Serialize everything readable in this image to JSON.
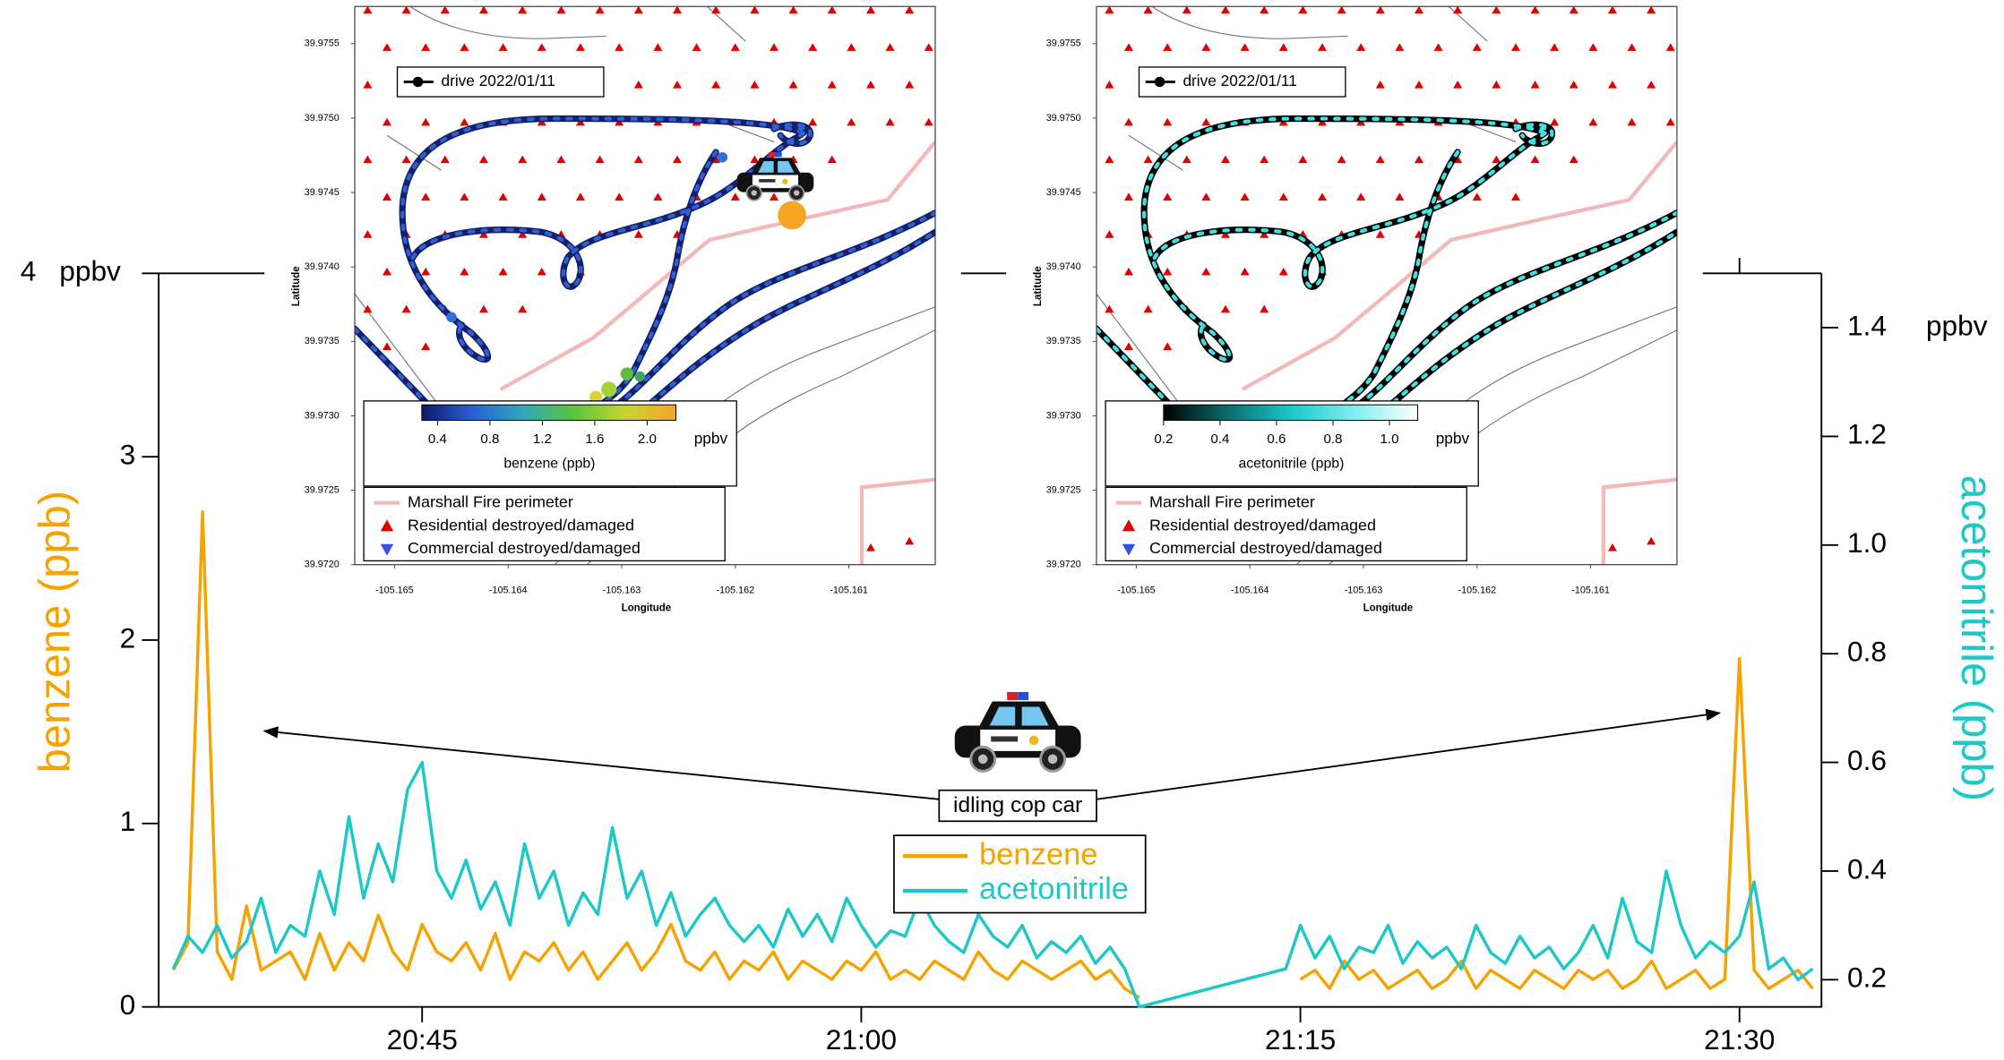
{
  "chart_data": [
    {
      "type": "line",
      "x": [
        1236.5,
        1237,
        1237.5,
        1238,
        1238.5,
        1239,
        1239.5,
        1240,
        1240.5,
        1241,
        1241.5,
        1242,
        1242.5,
        1243,
        1243.5,
        1244,
        1244.5,
        1245,
        1245.5,
        1246,
        1246.5,
        1247,
        1247.5,
        1248,
        1248.5,
        1249,
        1249.5,
        1250,
        1250.5,
        1251,
        1251.5,
        1252,
        1252.5,
        1253,
        1253.5,
        1254,
        1254.5,
        1255,
        1255.5,
        1256,
        1256.5,
        1257,
        1257.5,
        1258,
        1258.5,
        1259,
        1259.5,
        1260,
        1260.5,
        1261,
        1261.5,
        1262,
        1262.5,
        1263,
        1263.5,
        1264,
        1264.5,
        1265,
        1265.5,
        1266,
        1266.5,
        1267,
        1267.5,
        1268,
        1268.5,
        1269,
        1269.5,
        1270,
        1270.5,
        1271,
        1271.5,
        1272,
        1272.5,
        1273,
        1273.5,
        1274,
        1274.5,
        1275,
        1275.5,
        1276,
        1276.5,
        1277,
        1277.5,
        1278,
        1278.5,
        1279,
        1279.5,
        1280,
        1280.5,
        1281,
        1281.5,
        1282,
        1282.5,
        1283,
        1283.5,
        1284,
        1284.5,
        1285,
        1285.5,
        1286,
        1286.5,
        1287,
        1287.5,
        1288,
        1288.5,
        1289,
        1289.5,
        1290,
        1290.5,
        1291,
        1291.5,
        1292,
        1292.5
      ],
      "series": [
        {
          "name": "benzene",
          "color": "#f5a300",
          "values": [
            0.2,
            0.35,
            2.7,
            0.3,
            0.15,
            0.55,
            0.2,
            0.25,
            0.3,
            0.15,
            0.4,
            0.2,
            0.35,
            0.25,
            0.5,
            0.3,
            0.2,
            0.45,
            0.3,
            0.25,
            0.35,
            0.2,
            0.4,
            0.15,
            0.3,
            0.25,
            0.35,
            0.2,
            0.3,
            0.15,
            0.25,
            0.35,
            0.2,
            0.3,
            0.45,
            0.25,
            0.2,
            0.3,
            0.15,
            0.25,
            0.2,
            0.3,
            0.15,
            0.25,
            0.2,
            0.15,
            0.25,
            0.2,
            0.3,
            0.15,
            0.2,
            0.15,
            0.25,
            0.2,
            0.15,
            0.3,
            0.2,
            0.15,
            0.25,
            0.2,
            0.15,
            0.2,
            0.25,
            0.15,
            0.2,
            0.1,
            0.05,
            null,
            null,
            null,
            null,
            null,
            null,
            null,
            null,
            null,
            null,
            0.15,
            0.2,
            0.1,
            0.25,
            0.15,
            0.2,
            0.1,
            0.15,
            0.2,
            0.1,
            0.15,
            0.25,
            0.1,
            0.2,
            0.15,
            0.1,
            0.2,
            0.15,
            0.1,
            0.2,
            0.15,
            0.2,
            0.1,
            0.15,
            0.25,
            0.1,
            0.15,
            0.2,
            0.1,
            0.15,
            1.9,
            0.2,
            0.1,
            0.15,
            0.2,
            0.1
          ]
        },
        {
          "name": "acetonitrile",
          "color": "#1ec8c8",
          "axis": "y2",
          "values": [
            0.22,
            0.28,
            0.25,
            0.3,
            0.24,
            0.27,
            0.35,
            0.25,
            0.3,
            0.28,
            0.4,
            0.32,
            0.5,
            0.35,
            0.45,
            0.38,
            0.55,
            0.6,
            0.4,
            0.35,
            0.42,
            0.33,
            0.38,
            0.3,
            0.45,
            0.35,
            0.4,
            0.3,
            0.36,
            0.32,
            0.48,
            0.35,
            0.4,
            0.3,
            0.36,
            0.28,
            0.32,
            0.35,
            0.3,
            0.27,
            0.3,
            0.26,
            0.33,
            0.28,
            0.32,
            0.27,
            0.35,
            0.3,
            0.26,
            0.29,
            0.28,
            0.35,
            0.3,
            0.27,
            0.25,
            0.32,
            0.28,
            0.26,
            0.3,
            0.24,
            0.27,
            0.25,
            0.28,
            0.23,
            0.26,
            0.22,
            0.15,
            0.157,
            0.164,
            0.171,
            0.178,
            0.185,
            0.192,
            0.199,
            0.206,
            0.213,
            0.22,
            0.3,
            0.24,
            0.28,
            0.22,
            0.26,
            0.25,
            0.3,
            0.23,
            0.27,
            0.24,
            0.26,
            0.22,
            0.3,
            0.25,
            0.23,
            0.28,
            0.24,
            0.26,
            0.22,
            0.25,
            0.3,
            0.24,
            0.35,
            0.27,
            0.25,
            0.4,
            0.3,
            0.24,
            0.27,
            0.25,
            0.28,
            0.38,
            0.22,
            0.24,
            0.2,
            0.22
          ]
        }
      ],
      "xlim": [
        1236,
        1292.8
      ],
      "xticks": [
        {
          "value": 1245,
          "label": "20:45"
        },
        {
          "value": 1260,
          "label": "21:00"
        },
        {
          "value": 1275,
          "label": "21:15"
        },
        {
          "value": 1290,
          "label": "21:30"
        }
      ],
      "ylim": [
        0,
        4
      ],
      "yticks": [
        0,
        1,
        2,
        3,
        4
      ],
      "y2lim": [
        0.15,
        1.5
      ],
      "y2ticks": [
        0.2,
        0.4,
        0.6,
        0.8,
        {
          "value": 1,
          "label": "1.0"
        },
        1.2,
        1.4
      ],
      "ylabel": "benzene (ppb)",
      "y2label": "acetonitrile (ppb)",
      "yunit": "ppbv",
      "y2unit": "ppbv",
      "annotation": "idling cop car",
      "legend": "bottom",
      "grid": false
    },
    {
      "type": "map",
      "xlabel": "Longitude",
      "ylabel": "Latitude",
      "xlim": [
        -105.16535,
        -105.16024
      ],
      "ylim": [
        39.972,
        39.97575
      ],
      "xticks": [
        -105.165,
        -105.164,
        -105.163,
        -105.162,
        -105.161
      ],
      "yticks": [
        {
          "value": 39.972,
          "label": "39.9720"
        },
        39.9725,
        {
          "value": 39.973,
          "label": "39.9730"
        },
        39.9735,
        {
          "value": 39.974,
          "label": "39.9740"
        },
        39.9745,
        {
          "value": 39.975,
          "label": "39.9750"
        },
        39.9755
      ],
      "track_legend": "drive 2022/01/11",
      "track_colors": [
        "#14206b",
        "#2f5fd0"
      ],
      "colorbar": {
        "label": "benzene (ppb)",
        "unit": "ppbv",
        "lim": [
          0.28,
          2.22
        ],
        "ticks": [
          0.4,
          0.8,
          1.2,
          1.6,
          {
            "value": 2,
            "label": "2.0"
          }
        ],
        "colors": [
          "#0d1a6e",
          "#2a5fd6",
          "#2fa8b8",
          "#5cc43c",
          "#c8d430",
          "#f5a623"
        ]
      },
      "legend_entries": [
        {
          "name": "Marshall Fire perimeter",
          "color": "#f4b8b8"
        },
        {
          "name": "Residential destroyed/damaged",
          "color": "#e00000"
        },
        {
          "name": "Commercial destroyed/damaged",
          "color": "#3a4fe0"
        }
      ]
    },
    {
      "type": "map",
      "xlabel": "Longitude",
      "ylabel": "Latitude",
      "xlim": [
        -105.16535,
        -105.16024
      ],
      "ylim": [
        39.972,
        39.97575
      ],
      "xticks": [
        -105.165,
        -105.164,
        -105.163,
        -105.162,
        -105.161
      ],
      "yticks": [
        {
          "value": 39.972,
          "label": "39.9720"
        },
        39.9725,
        {
          "value": 39.973,
          "label": "39.9730"
        },
        39.9735,
        {
          "value": 39.974,
          "label": "39.9740"
        },
        39.9745,
        {
          "value": 39.975,
          "label": "39.9750"
        },
        39.9755
      ],
      "track_legend": "drive 2022/01/11",
      "track_colors": [
        "#000000",
        "#3fe0e0"
      ],
      "colorbar": {
        "label": "acetonitrile (ppb)",
        "unit": "ppbv",
        "lim": [
          0.2,
          1.1
        ],
        "ticks": [
          0.2,
          0.4,
          0.6,
          0.8,
          {
            "value": 1,
            "label": "1.0"
          }
        ],
        "colors": [
          "#000000",
          "#0b6b6b",
          "#18c8c8",
          "#7feeee",
          "#ffffff"
        ]
      },
      "legend_entries": [
        {
          "name": "Marshall Fire perimeter",
          "color": "#f4b8b8"
        },
        {
          "name": "Residential destroyed/damaged",
          "color": "#e00000"
        },
        {
          "name": "Commercial destroyed/damaged",
          "color": "#3a4fe0"
        }
      ]
    }
  ]
}
